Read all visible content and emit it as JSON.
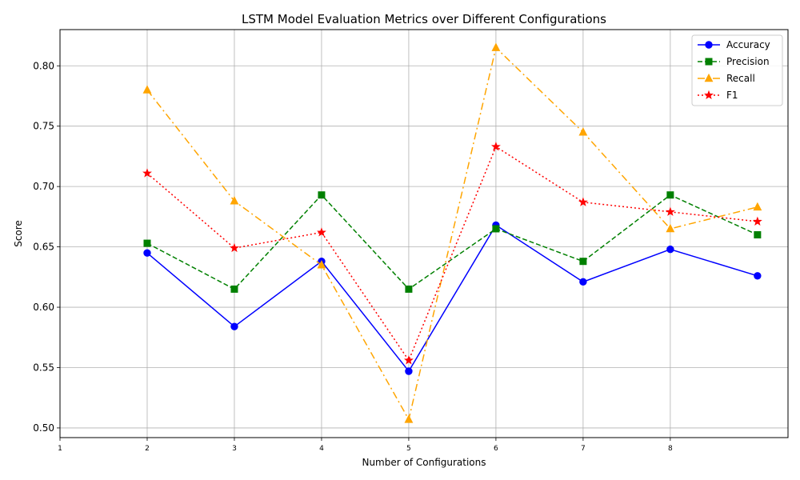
{
  "chart_data": {
    "type": "line",
    "title": "LSTM Model Evaluation Metrics over Different Configurations",
    "xlabel": "Number of Configurations",
    "ylabel": "Score",
    "x": [
      2,
      3,
      4,
      5,
      6,
      7,
      8,
      9
    ],
    "xticks": [
      1,
      2,
      3,
      4,
      5,
      6,
      7,
      8
    ],
    "xlim": [
      1,
      9.35
    ],
    "yticks": [
      0.5,
      0.55,
      0.6,
      0.65,
      0.7,
      0.75,
      0.8
    ],
    "ytick_labels": [
      "0.50",
      "0.55",
      "0.60",
      "0.65",
      "0.70",
      "0.75",
      "0.80"
    ],
    "ylim": [
      0.492,
      0.83
    ],
    "grid": true,
    "legend_position": "top-right",
    "series": [
      {
        "name": "Accuracy",
        "color": "#0000ff",
        "marker": "circle",
        "dash": "solid",
        "values": [
          0.645,
          0.584,
          0.638,
          0.547,
          0.668,
          0.621,
          0.648,
          0.626
        ]
      },
      {
        "name": "Precision",
        "color": "#008000",
        "marker": "square",
        "dash": "dashed",
        "values": [
          0.653,
          0.615,
          0.693,
          0.615,
          0.665,
          0.638,
          0.693,
          0.66
        ]
      },
      {
        "name": "Recall",
        "color": "#ffa500",
        "marker": "triangle",
        "dash": "dashdot",
        "values": [
          0.78,
          0.688,
          0.635,
          0.507,
          0.815,
          0.745,
          0.665,
          0.683
        ]
      },
      {
        "name": "F1",
        "color": "#ff0000",
        "marker": "star",
        "dash": "dotted",
        "values": [
          0.711,
          0.649,
          0.662,
          0.556,
          0.733,
          0.687,
          0.679,
          0.671
        ]
      }
    ]
  }
}
